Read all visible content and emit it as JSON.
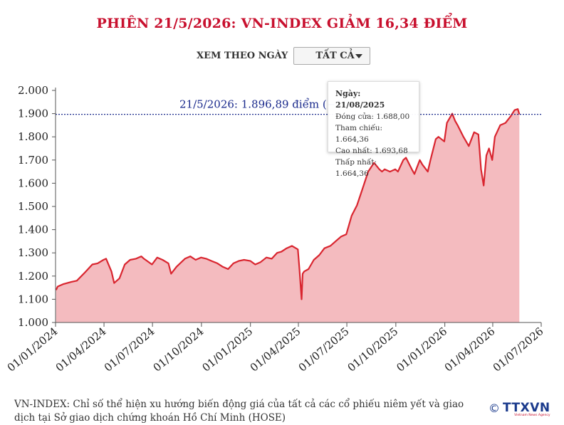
{
  "title": "PHIÊN 21/5/2026: VN-INDEX GIẢM 16,34 ĐIỂM",
  "filter": {
    "label": "XEM THEO NGÀY",
    "selected": "TẤT CẢ"
  },
  "tooltip": {
    "date": "Ngày: 21/08/2025",
    "open": "Đóng cửa: 1.688,00",
    "reference": "Tham chiếu: 1.664,36",
    "high": "Cao nhất: 1.693,68",
    "low": "Thấp nhất: 1.664,36"
  },
  "reference_line": {
    "label": "21/5/2026: 1.896,89 điểm (−16",
    "value": 1896.89
  },
  "source_note": "VN-INDEX: Chỉ số thể hiện xu hướng biến động giá của tất cả các cổ phiếu niêm yết và giao dịch tại Sở giao dịch chứng khoán Hồ Chí Minh (HOSE)",
  "logo": {
    "copyright": "©",
    "name": "TTXVN",
    "sub": "Vietnam News Agency"
  },
  "colors": {
    "title": "#c8102e",
    "line": "#d9252f",
    "area": "#f3b4b8",
    "reference": "#1a2a8c"
  },
  "chart_data": {
    "type": "area",
    "ylim": [
      1000,
      2000
    ],
    "yticks": [
      1000,
      1100,
      1200,
      1300,
      1400,
      1500,
      1600,
      1700,
      1800,
      1900,
      2000
    ],
    "ytick_labels": [
      "1.000",
      "1.100",
      "1.200",
      "1.300",
      "1.400",
      "1.500",
      "1.600",
      "1.700",
      "1.800",
      "1.900",
      "2.000"
    ],
    "xlim": [
      "2024-01-01",
      "2026-07-01"
    ],
    "xticks": [
      "2024-01-01",
      "2024-04-01",
      "2024-07-01",
      "2024-10-01",
      "2025-01-01",
      "2025-04-01",
      "2025-07-01",
      "2025-10-01",
      "2026-01-01",
      "2026-04-01",
      "2026-07-01"
    ],
    "xtick_labels": [
      "01/01/2024",
      "01/04/2024",
      "01/07/2024",
      "01/10/2024",
      "01/01/2025",
      "01/04/2025",
      "01/07/2025",
      "01/10/2025",
      "01/01/2026",
      "01/04/2026",
      "01/07/2026"
    ],
    "grid": false,
    "series": [
      {
        "x": [
          "2024-01-02",
          "2024-01-05",
          "2024-01-15",
          "2024-01-31",
          "2024-02-10",
          "2024-02-25",
          "2024-03-10",
          "2024-03-20",
          "2024-03-31",
          "2024-04-05",
          "2024-04-15",
          "2024-04-20",
          "2024-04-30",
          "2024-05-10",
          "2024-05-20",
          "2024-05-31",
          "2024-06-10",
          "2024-06-15",
          "2024-06-30",
          "2024-07-10",
          "2024-07-20",
          "2024-07-31",
          "2024-08-05",
          "2024-08-15",
          "2024-08-31",
          "2024-09-10",
          "2024-09-20",
          "2024-09-30",
          "2024-10-10",
          "2024-10-20",
          "2024-10-31",
          "2024-11-10",
          "2024-11-20",
          "2024-11-30",
          "2024-12-10",
          "2024-12-20",
          "2025-01-01",
          "2025-01-10",
          "2025-01-20",
          "2025-01-31",
          "2025-02-10",
          "2025-02-20",
          "2025-02-28",
          "2025-03-10",
          "2025-03-20",
          "2025-03-31",
          "2025-04-03",
          "2025-04-07",
          "2025-04-09",
          "2025-04-12",
          "2025-04-20",
          "2025-04-30",
          "2025-05-10",
          "2025-05-20",
          "2025-05-31",
          "2025-06-10",
          "2025-06-20",
          "2025-06-30",
          "2025-07-10",
          "2025-07-20",
          "2025-07-31",
          "2025-08-10",
          "2025-08-21",
          "2025-08-31",
          "2025-09-05",
          "2025-09-10",
          "2025-09-20",
          "2025-09-30",
          "2025-10-05",
          "2025-10-15",
          "2025-10-20",
          "2025-10-31",
          "2025-11-05",
          "2025-11-15",
          "2025-11-20",
          "2025-11-30",
          "2025-12-05",
          "2025-12-15",
          "2025-12-20",
          "2025-12-31",
          "2026-01-05",
          "2026-01-15",
          "2026-01-20",
          "2026-01-25",
          "2026-02-05",
          "2026-02-15",
          "2026-02-25",
          "2026-03-05",
          "2026-03-10",
          "2026-03-15",
          "2026-03-20",
          "2026-03-25",
          "2026-03-31",
          "2026-04-05",
          "2026-04-15",
          "2026-04-25",
          "2026-05-05",
          "2026-05-12",
          "2026-05-18",
          "2026-05-21"
        ],
        "y": [
          1140,
          1155,
          1165,
          1175,
          1180,
          1215,
          1250,
          1255,
          1270,
          1275,
          1220,
          1170,
          1190,
          1250,
          1270,
          1275,
          1285,
          1275,
          1250,
          1280,
          1270,
          1255,
          1210,
          1240,
          1275,
          1285,
          1270,
          1280,
          1275,
          1265,
          1255,
          1240,
          1230,
          1255,
          1265,
          1270,
          1265,
          1250,
          1260,
          1280,
          1275,
          1300,
          1305,
          1320,
          1330,
          1315,
          1230,
          1100,
          1210,
          1220,
          1230,
          1270,
          1290,
          1320,
          1330,
          1350,
          1370,
          1380,
          1460,
          1505,
          1580,
          1650,
          1688,
          1660,
          1650,
          1660,
          1650,
          1660,
          1650,
          1700,
          1710,
          1660,
          1640,
          1700,
          1680,
          1650,
          1700,
          1790,
          1800,
          1780,
          1860,
          1900,
          1870,
          1850,
          1800,
          1760,
          1820,
          1810,
          1660,
          1590,
          1720,
          1750,
          1700,
          1800,
          1850,
          1860,
          1890,
          1915,
          1920,
          1896.89
        ]
      }
    ]
  }
}
